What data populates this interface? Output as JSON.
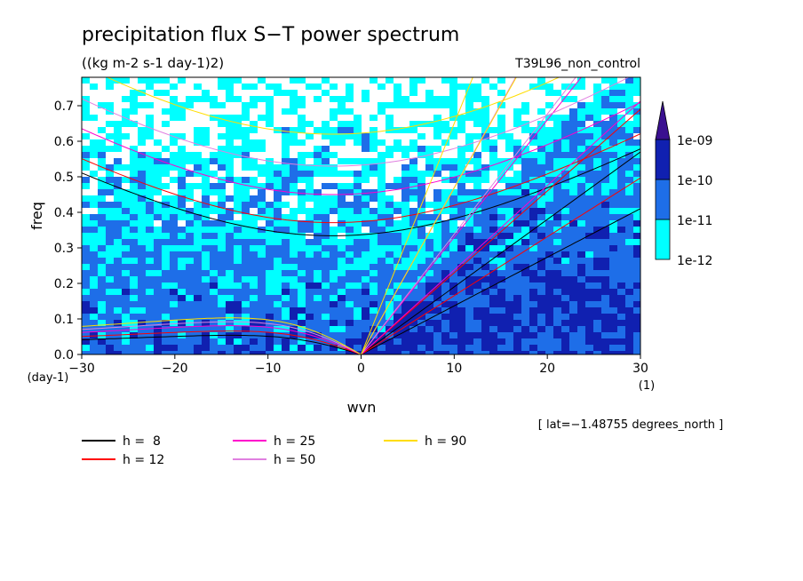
{
  "chart_data": {
    "type": "heatmap",
    "title": "precipitation flux S−T power spectrum",
    "subtitle": "((kg m-2 s-1 day-1)2)",
    "run_label": "T39L96_non_control",
    "xlabel": "wvn",
    "ylabel": "freq",
    "x_unit": "(1)",
    "y_unit": "(day-1)",
    "xlim": [
      -30,
      30
    ],
    "ylim": [
      0,
      0.78
    ],
    "x_ticks": [
      -30,
      -20,
      -10,
      0,
      10,
      20,
      30
    ],
    "y_ticks": [
      0.0,
      0.1,
      0.2,
      0.3,
      0.4,
      0.5,
      0.6,
      0.7
    ],
    "colorbar": {
      "levels": [
        "1e-12",
        "1e-11",
        "1e-10",
        "1e-09"
      ],
      "colors": [
        "#00ffff",
        "#1e6ee8",
        "#1020b0",
        "#3a1090"
      ]
    },
    "footer_note": "[ lat=−1.48755 degrees_north ]",
    "dispersion_curves": [
      {
        "name": "h =  8",
        "color": "#000000",
        "ig_min": 0.334,
        "eq_peak": 0.054,
        "kelvin_slope": 0.019
      },
      {
        "name": "h = 12",
        "color": "#ff0000",
        "ig_min": 0.371,
        "eq_peak": 0.066,
        "kelvin_slope": 0.023
      },
      {
        "name": "h = 25",
        "color": "#ff00cc",
        "ig_min": 0.45,
        "eq_peak": 0.081,
        "kelvin_slope": 0.033
      },
      {
        "name": "h = 50",
        "color": "#e080e0",
        "ig_min": 0.53,
        "eq_peak": 0.092,
        "kelvin_slope": 0.047
      },
      {
        "name": "h = 90",
        "color": "#ffdd00",
        "ig_min": 0.62,
        "eq_peak": 0.103,
        "kelvin_slope": 0.065
      }
    ]
  }
}
